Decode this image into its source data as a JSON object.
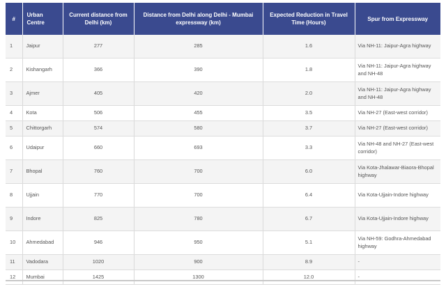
{
  "table": {
    "headers": {
      "num": "#",
      "city": "Urban Centre",
      "current": "Current distance from Delhi (km)",
      "expressway": "Distance from Delhi along Delhi - Mumbai expressway (km)",
      "reduction": "Expected Reduction in Travel Time (Hours)",
      "spur": "Spur from Expressway"
    },
    "rows": [
      {
        "num": "1",
        "city": "Jaipur",
        "current": "277",
        "expressway": "285",
        "reduction": "1.6",
        "spur": "Via NH-11: Jaipur-Agra highway"
      },
      {
        "num": "2",
        "city": "Kishangarh",
        "current": "366",
        "expressway": "390",
        "reduction": "1.8",
        "spur": "Via NH-11: Jaipur-Agra highway and NH-48"
      },
      {
        "num": "3",
        "city": "Ajmer",
        "current": "405",
        "expressway": "420",
        "reduction": "2.0",
        "spur": "Via NH-11: Jaipur-Agra highway and NH-48"
      },
      {
        "num": "4",
        "city": "Kota",
        "current": "506",
        "expressway": "455",
        "reduction": "3.5",
        "spur": "Via NH-27 (East-west corridor)"
      },
      {
        "num": "5",
        "city": "Chittorgarh",
        "current": "574",
        "expressway": "580",
        "reduction": "3.7",
        "spur": "Via NH-27 (East-west corridor)"
      },
      {
        "num": "6",
        "city": "Udaipur",
        "current": "660",
        "expressway": "693",
        "reduction": "3.3",
        "spur": "Via NH-48 and NH-27 (East-west corridor)"
      },
      {
        "num": "7",
        "city": "Bhopal",
        "current": "760",
        "expressway": "700",
        "reduction": "6.0",
        "spur": "Via Kota-Jhalawar-Biaora-Bhopal highway"
      },
      {
        "num": "8",
        "city": "Ujjain",
        "current": "770",
        "expressway": "700",
        "reduction": "6.4",
        "spur": "Via Kota-Ujjain-Indore highway"
      },
      {
        "num": "9",
        "city": "Indore",
        "current": "825",
        "expressway": "780",
        "reduction": "6.7",
        "spur": "Via Kota-Ujjain-Indore highway"
      },
      {
        "num": "10",
        "city": "Ahmedabad",
        "current": "946",
        "expressway": "950",
        "reduction": "5.1",
        "spur": "Via NH-59: Godhra-Ahmedabad highway"
      },
      {
        "num": "11",
        "city": "Vadodara",
        "current": "1020",
        "expressway": "900",
        "reduction": "8.9",
        "spur": "-"
      },
      {
        "num": "12",
        "city": "Mumbai",
        "current": "1425",
        "expressway": "1300",
        "reduction": "12.0",
        "spur": "-"
      }
    ]
  }
}
